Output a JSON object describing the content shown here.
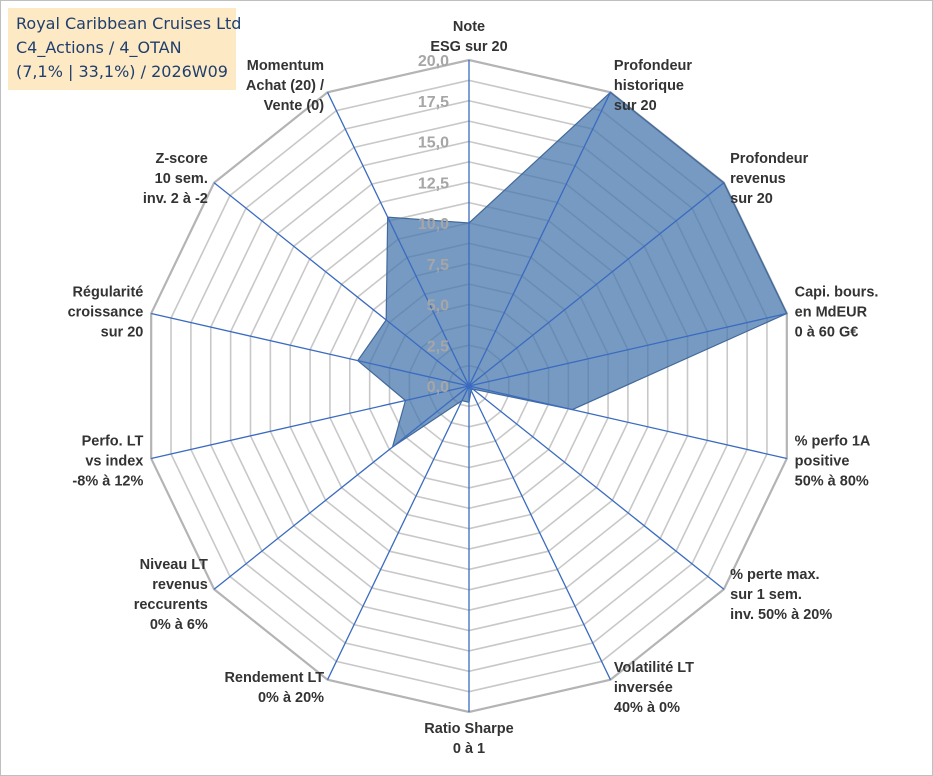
{
  "title_box": {
    "line1": "Royal Caribbean Cruises Ltd",
    "line2": "C4_Actions / 4_OTAN",
    "line3": "(7,1% | 33,1%) / 2026W09",
    "background": "#fde9c4",
    "text_color": "#1f3f6e"
  },
  "chart_data": {
    "type": "radar",
    "rmin": 0,
    "rmax": 20,
    "ticks": [
      "0,0",
      "2,5",
      "5,0",
      "7,5",
      "10,0",
      "12,5",
      "15,0",
      "17,5",
      "20,0"
    ],
    "grid": true,
    "fill_color": "#4a78ad",
    "spoke_color": "#3a6bc0",
    "grid_color": "#c8c8c8",
    "axes": [
      {
        "label": [
          "Note",
          "ESG sur 20"
        ],
        "value": 10.0
      },
      {
        "label": [
          "Profondeur",
          "historique",
          "sur 20"
        ],
        "value": 20.0
      },
      {
        "label": [
          "Profondeur",
          "revenus",
          "sur 20"
        ],
        "value": 20.0
      },
      {
        "label": [
          "Capi. bours.",
          "en MdEUR",
          "0 à 60 G€"
        ],
        "value": 20.0
      },
      {
        "label": [
          "% perfo 1A",
          "positive",
          "50% à 80%"
        ],
        "value": 6.5
      },
      {
        "label": [
          "% perte max.",
          "sur 1 sem.",
          "inv. 50% à 20%"
        ],
        "value": 0.3
      },
      {
        "label": [
          "Volatilité LT",
          "inversée",
          "40% à 0%"
        ],
        "value": 0.3
      },
      {
        "label": [
          "Ratio Sharpe",
          "0 à 1"
        ],
        "value": 1.0
      },
      {
        "label": [
          "Rendement LT",
          "0% à 20%"
        ],
        "value": 1.0
      },
      {
        "label": [
          "Niveau LT",
          "revenus",
          "reccurents",
          "0% à 6%"
        ],
        "value": 6.0
      },
      {
        "label": [
          "Perfo. LT",
          "vs index",
          "-8% à 12%"
        ],
        "value": 4.0
      },
      {
        "label": [
          "Régularité",
          "croissance",
          "sur 20"
        ],
        "value": 7.0
      },
      {
        "label": [
          "Z-score",
          "10 sem.",
          "inv. 2 à -2"
        ],
        "value": 6.5
      },
      {
        "label": [
          "Momentum",
          "Achat (20) /",
          "Vente (0)"
        ],
        "value": 11.5
      }
    ]
  }
}
